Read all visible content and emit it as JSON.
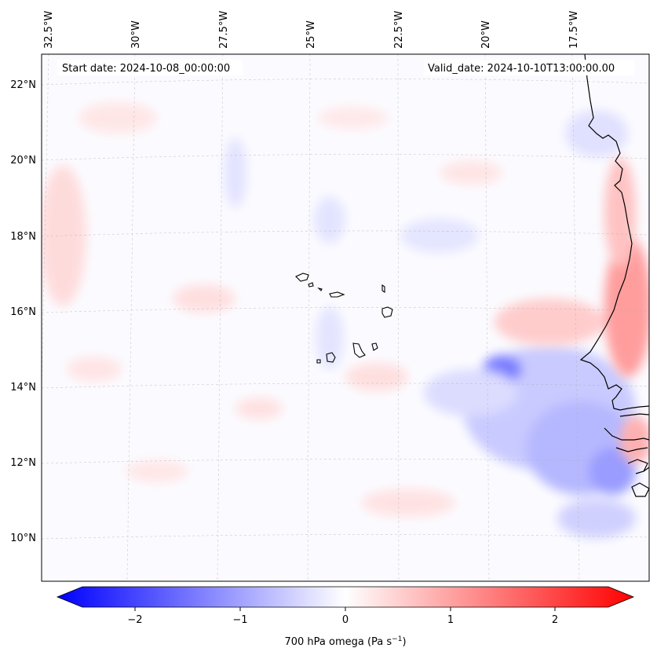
{
  "header": {
    "start_date": "Start date: 2024-10-08_00:00:00",
    "valid_date": "Valid_date: 2024-10-10T13:00:00.00"
  },
  "map": {
    "lon_labels": [
      "32.5°W",
      "30°W",
      "27.5°W",
      "25°W",
      "22.5°W",
      "20°W",
      "17.5°W"
    ],
    "lat_labels": [
      "22°N",
      "20°N",
      "18°N",
      "16°N",
      "14°N",
      "12°N",
      "10°N"
    ],
    "colors": {
      "neg": "#0000ff",
      "mid": "#ffffff",
      "pos": "#ff0000",
      "coast": "#000000",
      "grid": "#999999"
    }
  },
  "colorbar": {
    "label": "700 hPa omega (Pa s",
    "label_sup": "−1",
    "label_end": ")",
    "ticks": [
      "−2",
      "−1",
      "0",
      "1",
      "2"
    ],
    "range": [
      -2.7,
      2.7
    ]
  }
}
